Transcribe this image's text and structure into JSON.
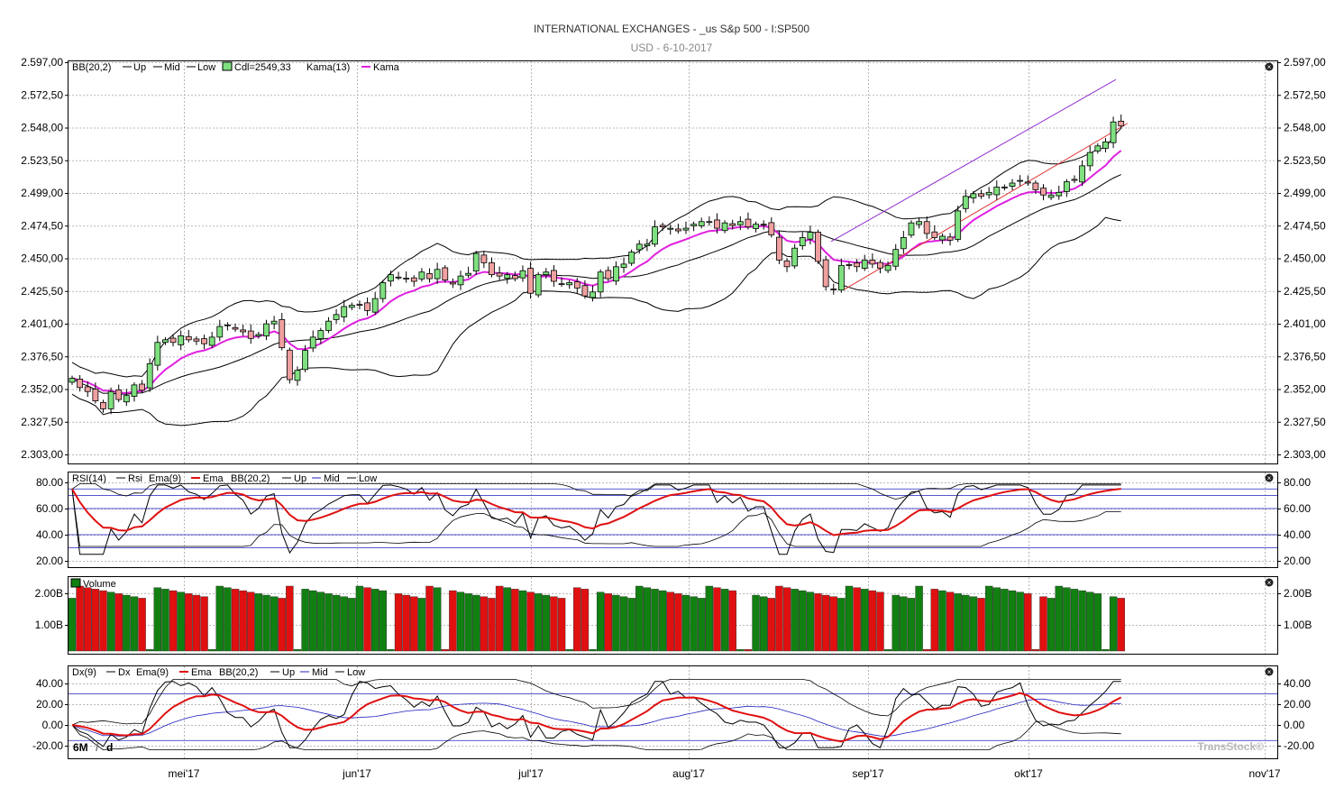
{
  "header": {
    "title": "INTERNATIONAL EXCHANGES - _us S&p 500 - I:SP500",
    "subtitle": "USD - 6-10-2017"
  },
  "watermark": "TransStock©",
  "period": {
    "range": "6M",
    "interval": "d"
  },
  "colors": {
    "up": "#7ee07e",
    "down": "#f0a0a0",
    "kama": "#e020e0",
    "ema": "#e01010",
    "mid": "#2020c0",
    "vol_up": "#118011",
    "vol_down": "#e01010",
    "grid": "#b8b8b8",
    "channel_upper": "#9030d0",
    "channel_lower": "#e03030"
  },
  "x_axis": {
    "labels": [
      "mei'17",
      "jun'17",
      "jul'17",
      "aug'17",
      "sep'17",
      "okt'17",
      "nov'17"
    ]
  },
  "panels": {
    "price": {
      "legend": [
        "BB(20,2)",
        "Up",
        "Mid",
        "Low",
        "Cdl=2549,33",
        "Kama(13)",
        "Kama"
      ],
      "ticks": [
        "2.597,00",
        "2.572,50",
        "2.548,00",
        "2.523,50",
        "2.499,00",
        "2.474,50",
        "2.450,00",
        "2.425,50",
        "2.401,00",
        "2.376,50",
        "2.352,00",
        "2.327,50",
        "2.303,00"
      ]
    },
    "rsi": {
      "legend": [
        "RSI(14)",
        "Rsi",
        "Ema(9)",
        "Ema",
        "BB(20,2)",
        "Up",
        "Mid",
        "Low"
      ],
      "ticks": [
        "80.00",
        "60.00",
        "40.00",
        "20.00"
      ]
    },
    "volume": {
      "legend": [
        "Volume"
      ],
      "ticks": [
        "2.00B",
        "1.00B"
      ]
    },
    "dx": {
      "legend": [
        "Dx(9)",
        "Dx",
        "Ema(9)",
        "Ema",
        "BB(20,2)",
        "Up",
        "Mid",
        "Low"
      ],
      "ticks": [
        "40.00",
        "20.00",
        "0.00",
        "-20.00"
      ]
    }
  },
  "chart_data": [
    {
      "type": "candlestick",
      "title": "INTERNATIONAL EXCHANGES - _us S&p 500 - I:SP500",
      "ylim": [
        2303,
        2597
      ],
      "closes": [
        2359,
        2352,
        2349,
        2342,
        2336,
        2349,
        2343,
        2346,
        2354,
        2350,
        2370,
        2386,
        2388,
        2386,
        2391,
        2388,
        2387,
        2385,
        2390,
        2398,
        2399,
        2396,
        2394,
        2389,
        2392,
        2400,
        2402,
        2382,
        2358,
        2365,
        2380,
        2390,
        2395,
        2402,
        2407,
        2413,
        2414,
        2414,
        2410,
        2419,
        2431,
        2437,
        2435,
        2434,
        2432,
        2439,
        2434,
        2441,
        2433,
        2430,
        2436,
        2438,
        2453,
        2446,
        2437,
        2436,
        2437,
        2434,
        2440,
        2423,
        2437,
        2439,
        2432,
        2430,
        2431,
        2427,
        2421,
        2424,
        2439,
        2434,
        2443,
        2445,
        2454,
        2460,
        2460,
        2473,
        2473,
        2472,
        2470,
        2472,
        2475,
        2477,
        2477,
        2472,
        2476,
        2474,
        2477,
        2473,
        2475,
        2475,
        2467,
        2448,
        2443,
        2457,
        2465,
        2469,
        2447,
        2428,
        2426,
        2444,
        2444,
        2443,
        2448,
        2445,
        2442,
        2444,
        2456,
        2465,
        2476,
        2477,
        2468,
        2465,
        2466,
        2463,
        2485,
        2496,
        2498,
        2496,
        2499,
        2503,
        2503,
        2506,
        2508,
        2506,
        2501,
        2497,
        2497,
        2499,
        2507,
        2508,
        2519,
        2529,
        2534,
        2537,
        2552,
        2549
      ],
      "upper_band_y_ticks_note": "",
      "series": []
    },
    {
      "type": "line",
      "ylim": [
        20,
        80
      ]
    },
    {
      "type": "bar",
      "ylim": [
        0,
        2.3
      ]
    },
    {
      "type": "line",
      "ylim": [
        -20,
        45
      ]
    }
  ]
}
